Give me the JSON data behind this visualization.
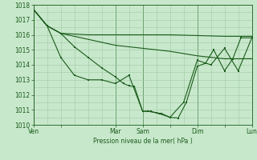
{
  "background_color": "#c8e8cc",
  "grid_color": "#a0c8a4",
  "line_color": "#1a5c1a",
  "xlabel_text": "Pression niveau de la mer( hPa )",
  "ylim": [
    1010,
    1018
  ],
  "yticks": [
    1010,
    1011,
    1012,
    1013,
    1014,
    1015,
    1016,
    1017,
    1018
  ],
  "xtick_labels": [
    "Ven",
    "",
    "Mar",
    "Sam",
    "",
    "Dim",
    "",
    "Lun"
  ],
  "xtick_positions": [
    0,
    1,
    3,
    4,
    5,
    6,
    7,
    8
  ],
  "xlim": [
    0,
    8
  ],
  "vlines": [
    0,
    3,
    4,
    6,
    8
  ],
  "line1_flat": {
    "x": [
      0,
      0.5,
      1.0,
      1.5,
      2.0,
      2.5,
      3.0,
      4.0,
      5.0,
      6.0,
      7.0,
      7.5,
      8.0
    ],
    "y": [
      1017.7,
      1016.6,
      1016.1,
      1016.05,
      1016.0,
      1016.0,
      1016.0,
      1016.0,
      1016.0,
      1015.95,
      1015.9,
      1015.9,
      1015.9
    ]
  },
  "line2_flat": {
    "x": [
      0,
      0.5,
      1.0,
      1.5,
      2.0,
      2.5,
      3.0,
      4.0,
      5.0,
      6.0,
      7.0,
      7.5,
      8.0
    ],
    "y": [
      1017.7,
      1016.6,
      1016.1,
      1015.9,
      1015.7,
      1015.5,
      1015.3,
      1015.1,
      1014.9,
      1014.6,
      1014.4,
      1014.4,
      1014.4
    ]
  },
  "line3_markers": {
    "x": [
      0,
      0.5,
      1.0,
      1.5,
      2.0,
      2.5,
      3.0,
      3.5,
      4.0,
      4.3,
      4.6,
      5.0,
      5.5,
      6.0,
      6.5,
      7.0,
      7.5,
      8.0
    ],
    "y": [
      1017.7,
      1016.6,
      1014.5,
      1013.3,
      1013.0,
      1013.0,
      1012.75,
      1013.3,
      1010.9,
      1010.9,
      1010.75,
      1010.5,
      1011.5,
      1014.3,
      1014.0,
      1015.1,
      1013.6,
      1015.8
    ]
  },
  "line4_markers": {
    "x": [
      0,
      0.5,
      1.0,
      1.5,
      2.0,
      2.5,
      3.0,
      3.3,
      3.5,
      3.7,
      4.0,
      4.2,
      4.5,
      4.7,
      5.0,
      5.3,
      5.6,
      6.0,
      6.3,
      6.6,
      7.0,
      7.3,
      7.6,
      8.0
    ],
    "y": [
      1017.7,
      1016.6,
      1016.1,
      1015.2,
      1014.5,
      1013.8,
      1013.2,
      1012.75,
      1012.6,
      1012.55,
      1010.9,
      1010.9,
      1010.8,
      1010.75,
      1010.5,
      1010.45,
      1011.5,
      1013.9,
      1014.1,
      1015.0,
      1013.6,
      1014.4,
      1015.8,
      1015.8
    ]
  }
}
